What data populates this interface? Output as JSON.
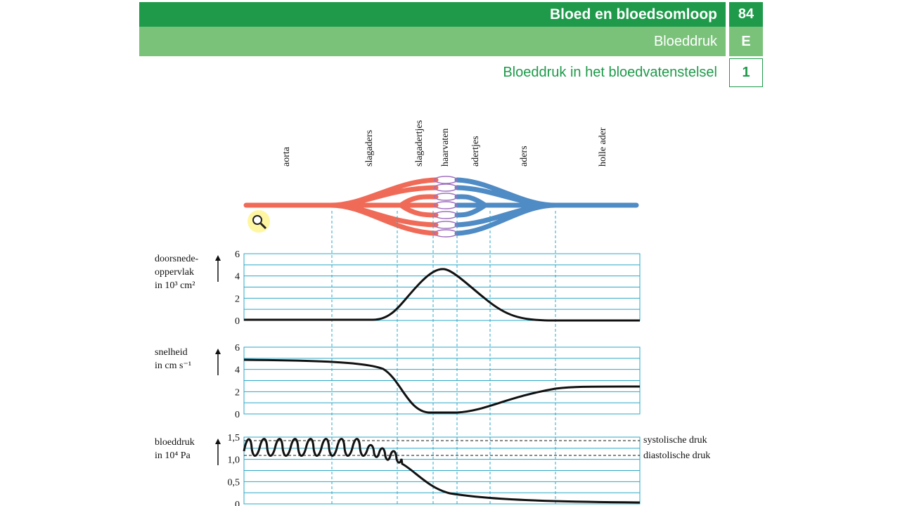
{
  "header": {
    "chapter": "Bloed en bloedsomloop",
    "chapter_number": "84",
    "section": "Bloeddruk",
    "section_letter": "E",
    "subsection": "Bloeddruk in het bloedvatenstelsel",
    "subsection_number": "1"
  },
  "vessels": [
    "aorta",
    "slagaders",
    "slagadertjes",
    "haarvaten",
    "adertjes",
    "aders",
    "holle ader"
  ],
  "panels": [
    {
      "label": [
        "doorsnede-",
        "oppervlak",
        "in 10³ cm²"
      ],
      "ylim": [
        0,
        6
      ],
      "yticks": [
        0,
        2,
        4,
        6
      ]
    },
    {
      "label": [
        "snelheid",
        "in cm s⁻¹"
      ],
      "ylim": [
        0,
        6
      ],
      "yticks": [
        0,
        2,
        4,
        6
      ]
    },
    {
      "label": [
        "bloeddruk",
        "in 10⁴ Pa"
      ],
      "ylim": [
        0,
        1.5
      ],
      "yticks": [
        0,
        {
          "value": 0.5,
          "label": "0,5"
        },
        {
          "value": 1.0,
          "label": "1,0"
        },
        {
          "value": 1.5,
          "label": "1,5"
        }
      ]
    }
  ],
  "annotations": [
    "systolische druk",
    "diastolische druk"
  ]
}
